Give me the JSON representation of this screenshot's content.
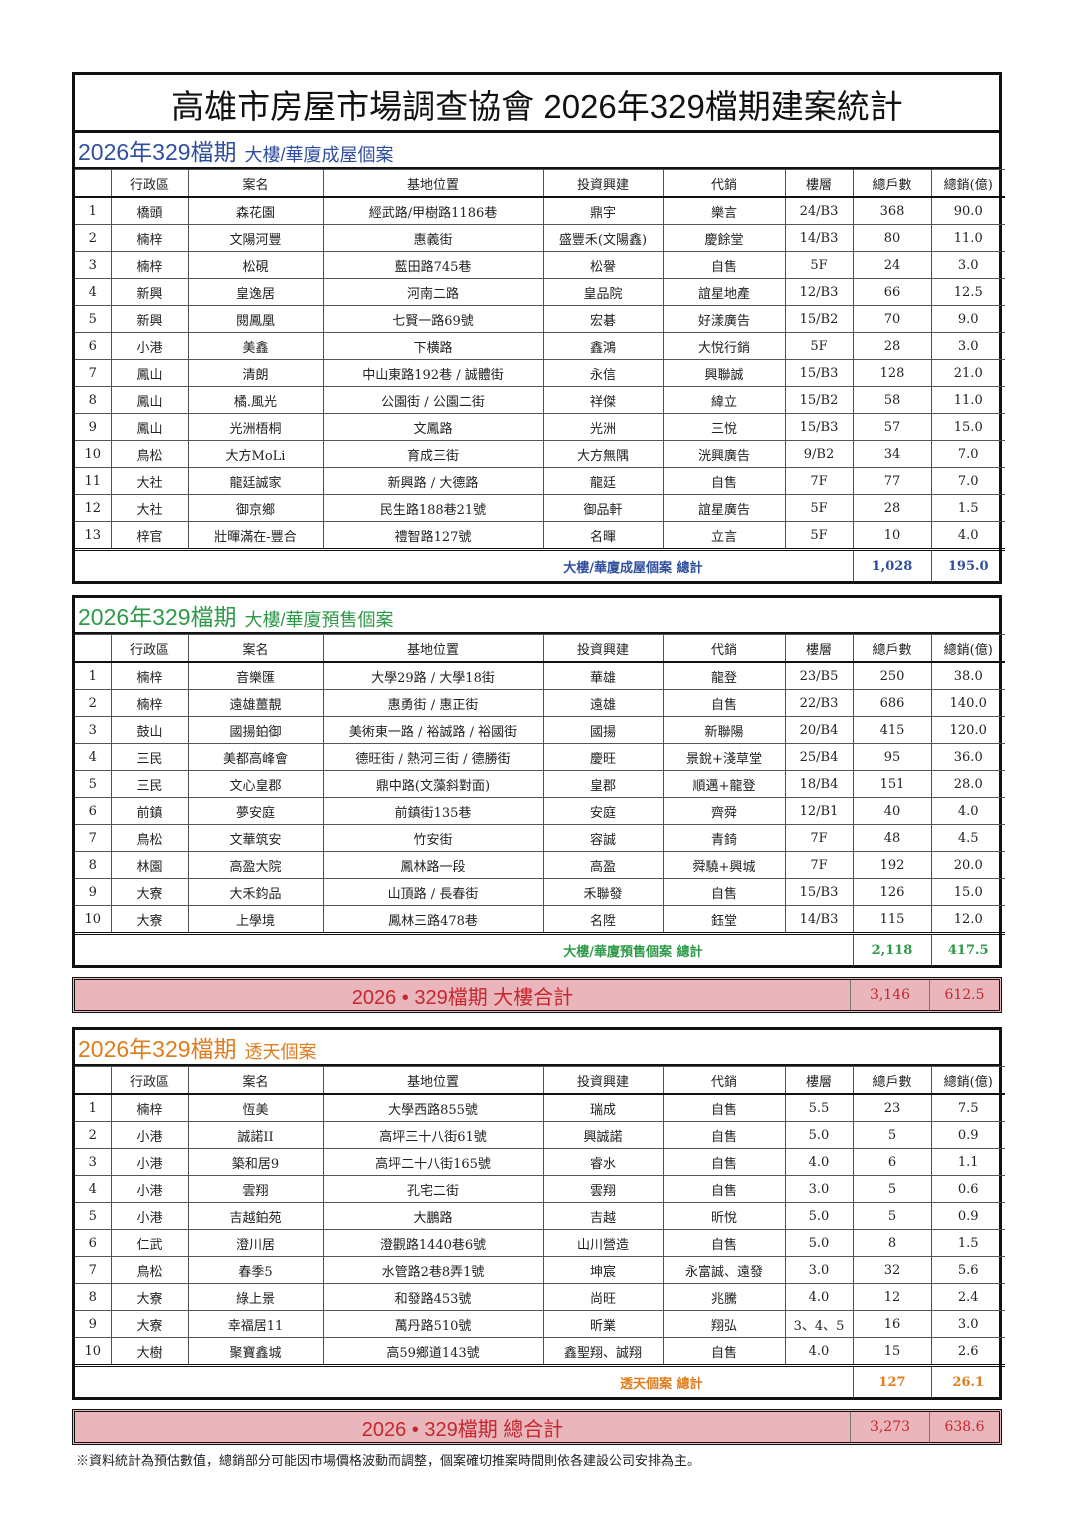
{
  "title": "高雄市房屋市場調查協會  2026年329檔期建案統計",
  "columns": [
    "",
    "行政區",
    "案名",
    "基地位置",
    "投資興建",
    "代銷",
    "樓層",
    "總戶數",
    "總銷(億)"
  ],
  "colors": {
    "section1": "#2f4e9e",
    "section2": "#2e9a48",
    "section3": "#e07c1c",
    "grand_bg": "#e9b7bb",
    "grand_text": "#c6262e"
  },
  "sections": [
    {
      "heading": "2026年329檔期",
      "subheading": "大樓/華廈成屋個案",
      "rows": [
        [
          "1",
          "橋頭",
          "森花園",
          "經武路/甲樹路1186巷",
          "鼎宇",
          "樂言",
          "24/B3",
          "368",
          "90.0"
        ],
        [
          "2",
          "楠梓",
          "文陽河豐",
          "惠義街",
          "盛豐禾(文陽鑫)",
          "慶餘堂",
          "14/B3",
          "80",
          "11.0"
        ],
        [
          "3",
          "楠梓",
          "松硯",
          "藍田路745巷",
          "松譽",
          "自售",
          "5F",
          "24",
          "3.0"
        ],
        [
          "4",
          "新興",
          "皇逸居",
          "河南二路",
          "皇品院",
          "誼星地產",
          "12/B3",
          "66",
          "12.5"
        ],
        [
          "5",
          "新興",
          "閱鳳凰",
          "七賢一路69號",
          "宏碁",
          "好漾廣告",
          "15/B2",
          "70",
          "9.0"
        ],
        [
          "6",
          "小港",
          "美鑫",
          "下横路",
          "鑫鴻",
          "大悅行銷",
          "5F",
          "28",
          "3.0"
        ],
        [
          "7",
          "鳳山",
          "清朗",
          "中山東路192巷 / 誠體街",
          "永信",
          "興聯誠",
          "15/B3",
          "128",
          "21.0"
        ],
        [
          "8",
          "鳳山",
          "橘.風光",
          "公園街 / 公園二街",
          "祥傑",
          "緯立",
          "15/B2",
          "58",
          "11.0"
        ],
        [
          "9",
          "鳳山",
          "光洲梧桐",
          "文鳳路",
          "光洲",
          "三悅",
          "15/B3",
          "57",
          "15.0"
        ],
        [
          "10",
          "鳥松",
          "大方MoLi",
          "育成三街",
          "大方無隅",
          "洸興廣告",
          "9/B2",
          "34",
          "7.0"
        ],
        [
          "11",
          "大社",
          "龍廷誠家",
          "新興路 / 大德路",
          "龍廷",
          "自售",
          "7F",
          "77",
          "7.0"
        ],
        [
          "12",
          "大社",
          "御京鄉",
          "民生路188巷21號",
          "御品軒",
          "誼星廣告",
          "5F",
          "28",
          "1.5"
        ],
        [
          "13",
          "梓官",
          "壯暉滿在-豐合",
          "禮智路127號",
          "名暉",
          "立言",
          "5F",
          "10",
          "4.0"
        ]
      ],
      "total_label": "大樓/華廈成屋個案  總計",
      "total_units": "1,028",
      "total_sales": "195.0"
    },
    {
      "heading": "2026年329檔期",
      "subheading": "大樓/華廈預售個案",
      "rows": [
        [
          "1",
          "楠梓",
          "音樂匯",
          "大學29路 / 大學18街",
          "華雄",
          "龍登",
          "23/B5",
          "250",
          "38.0"
        ],
        [
          "2",
          "楠梓",
          "遠雄薑靚",
          "惠勇街 / 惠正街",
          "遠雄",
          "自售",
          "22/B3",
          "686",
          "140.0"
        ],
        [
          "3",
          "鼓山",
          "國揚鉑御",
          "美術東一路 / 裕誠路 / 裕國街",
          "國揚",
          "新聯陽",
          "20/B4",
          "415",
          "120.0"
        ],
        [
          "4",
          "三民",
          "美都高峰會",
          "德旺街 / 熱河三街 / 德勝街",
          "慶旺",
          "景銳+淺草堂",
          "25/B4",
          "95",
          "36.0"
        ],
        [
          "5",
          "三民",
          "文心皇郡",
          "鼎中路(文藻斜對面)",
          "皇郡",
          "順邁+龍登",
          "18/B4",
          "151",
          "28.0"
        ],
        [
          "6",
          "前鎮",
          "夢安庭",
          "前鎮街135巷",
          "安庭",
          "齊舜",
          "12/B1",
          "40",
          "4.0"
        ],
        [
          "7",
          "鳥松",
          "文華筑安",
          "竹安街",
          "容誠",
          "青錡",
          "7F",
          "48",
          "4.5"
        ],
        [
          "8",
          "林園",
          "高盈大院",
          "鳳林路一段",
          "高盈",
          "舜驍+興城",
          "7F",
          "192",
          "20.0"
        ],
        [
          "9",
          "大寮",
          "大禾鈞品",
          "山頂路 / 長春街",
          "禾聯發",
          "自售",
          "15/B3",
          "126",
          "15.0"
        ],
        [
          "10",
          "大寮",
          "上學境",
          "鳳林三路478巷",
          "名陞",
          "鈺堂",
          "14/B3",
          "115",
          "12.0"
        ]
      ],
      "total_label": "大樓/華廈預售個案  總計",
      "total_units": "2,118",
      "total_sales": "417.5"
    },
    {
      "heading": "2026年329檔期",
      "subheading": "透天個案",
      "rows": [
        [
          "1",
          "楠梓",
          "恆美",
          "大學西路855號",
          "瑞成",
          "自售",
          "5.5",
          "23",
          "7.5"
        ],
        [
          "2",
          "小港",
          "誠諾II",
          "高坪三十八街61號",
          "興誠諾",
          "自售",
          "5.0",
          "5",
          "0.9"
        ],
        [
          "3",
          "小港",
          "築和居9",
          "高坪二十八街165號",
          "睿水",
          "自售",
          "4.0",
          "6",
          "1.1"
        ],
        [
          "4",
          "小港",
          "雲翔",
          "孔宅二街",
          "雲翔",
          "自售",
          "3.0",
          "5",
          "0.6"
        ],
        [
          "5",
          "小港",
          "吉越鉑苑",
          "大鵬路",
          "吉越",
          "昕悅",
          "5.0",
          "5",
          "0.9"
        ],
        [
          "6",
          "仁武",
          "澄川居",
          "澄觀路1440巷6號",
          "山川營造",
          "自售",
          "5.0",
          "8",
          "1.5"
        ],
        [
          "7",
          "鳥松",
          "春季5",
          "水管路2巷8弄1號",
          "坤宸",
          "永富誠、遠發",
          "3.0",
          "32",
          "5.6"
        ],
        [
          "8",
          "大寮",
          "綠上景",
          "和發路453號",
          "尚旺",
          "兆騰",
          "4.0",
          "12",
          "2.4"
        ],
        [
          "9",
          "大寮",
          "幸福居11",
          "萬丹路510號",
          "昕業",
          "翔弘",
          "3、4、5",
          "16",
          "3.0"
        ],
        [
          "10",
          "大樹",
          "聚寶鑫城",
          "高59鄉道143號",
          "鑫聖翔、誠翔",
          "自售",
          "4.0",
          "15",
          "2.6"
        ]
      ],
      "total_label": "透天個案  總計",
      "total_units": "127",
      "total_sales": "26.1"
    }
  ],
  "grand_totals": [
    {
      "label": "2026  •  329檔期  大樓合計",
      "units": "3,146",
      "sales": "612.5"
    },
    {
      "label": "2026  •  329檔期  總合計",
      "units": "3,273",
      "sales": "638.6"
    }
  ],
  "footnote": "※資料統計為預估數值，總銷部分可能因市場價格波動而調整，個案確切推案時間則依各建設公司安排為主。"
}
